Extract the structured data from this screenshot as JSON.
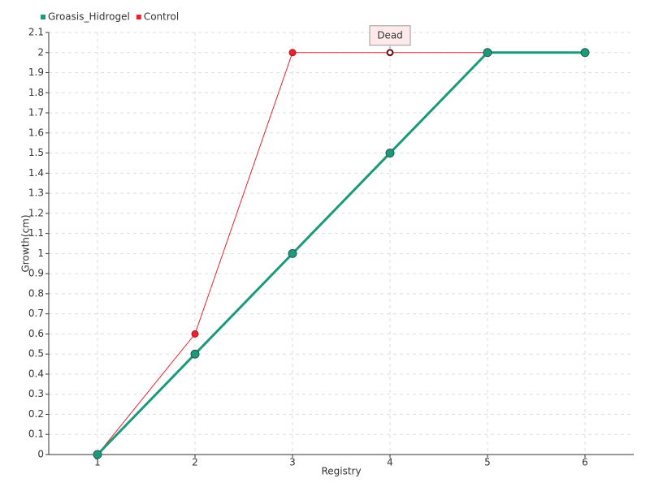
{
  "chart_data": {
    "type": "line",
    "x": [
      1,
      2,
      3,
      4,
      5,
      6
    ],
    "xlim": [
      0.5,
      6.5
    ],
    "xticks": [
      1,
      2,
      3,
      4,
      5,
      6
    ],
    "ylim": [
      0,
      2.1
    ],
    "yticks": [
      0,
      0.1,
      0.2,
      0.3,
      0.4,
      0.5,
      0.6,
      0.7,
      0.8,
      0.9,
      1,
      1.1,
      1.2,
      1.3,
      1.4,
      1.5,
      1.6,
      1.7,
      1.8,
      1.9,
      2,
      2.1
    ],
    "xlabel": "Registry",
    "ylabel": "Growth(cm)",
    "grid": true,
    "series": [
      {
        "name": "Groasis_Hidrogel",
        "color": "#1a9a7a",
        "values": [
          0,
          0.5,
          1,
          1.5,
          2,
          2
        ]
      },
      {
        "name": "Control",
        "color": "#e8232f",
        "values": [
          0,
          0.6,
          2,
          2,
          2,
          2
        ]
      }
    ],
    "annotation": {
      "text": "Dead",
      "x": 4,
      "y": 2
    }
  }
}
